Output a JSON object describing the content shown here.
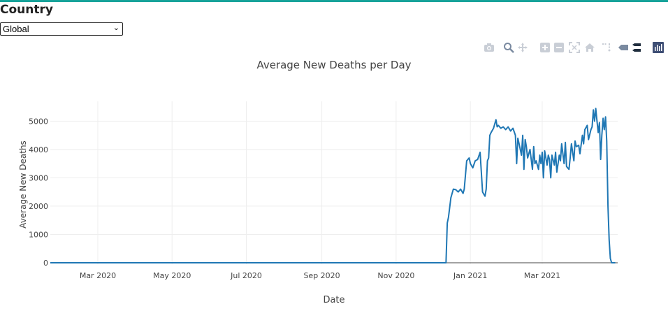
{
  "header": {
    "title": "Country"
  },
  "country_select": {
    "selected": "Global"
  },
  "modebar": {
    "icons": [
      "camera-icon",
      "zoom-icon",
      "pan-icon",
      "zoom-in-icon",
      "zoom-out-icon",
      "autoscale-icon",
      "reset-axes-icon",
      "spike-lines-icon",
      "hover-closest-icon",
      "hover-compare-icon",
      "plotly-logo-icon"
    ]
  },
  "chart_data": {
    "type": "line",
    "title": "Average New Deaths per Day",
    "xlabel": "Date",
    "ylabel": "Average New Deaths",
    "x_range": [
      "2020-01-22",
      "2021-05-02"
    ],
    "ylim": [
      -50,
      5700
    ],
    "x_ticks": [
      {
        "date": "2020-03-01",
        "label": "Mar 2020"
      },
      {
        "date": "2020-05-01",
        "label": "May 2020"
      },
      {
        "date": "2020-07-01",
        "label": "Jul 2020"
      },
      {
        "date": "2020-09-01",
        "label": "Sep 2020"
      },
      {
        "date": "2020-11-01",
        "label": "Nov 2020"
      },
      {
        "date": "2021-01-01",
        "label": "Jan 2021"
      },
      {
        "date": "2021-03-01",
        "label": "Mar 2021"
      }
    ],
    "y_ticks": [
      0,
      1000,
      2000,
      3000,
      4000,
      5000
    ],
    "grid": true,
    "series": [
      {
        "color": "#1f77b4",
        "x": [
          "2020-01-22",
          "2020-12-12",
          "2020-12-13",
          "2020-12-14",
          "2020-12-16",
          "2020-12-18",
          "2020-12-20",
          "2020-12-22",
          "2020-12-24",
          "2020-12-26",
          "2020-12-27",
          "2020-12-29",
          "2020-12-31",
          "2021-01-01",
          "2021-01-03",
          "2021-01-05",
          "2021-01-07",
          "2021-01-09",
          "2021-01-11",
          "2021-01-13",
          "2021-01-14",
          "2021-01-15",
          "2021-01-16",
          "2021-01-17",
          "2021-01-18",
          "2021-01-20",
          "2021-01-22",
          "2021-01-23",
          "2021-01-24",
          "2021-01-26",
          "2021-01-28",
          "2021-01-30",
          "2021-02-01",
          "2021-02-03",
          "2021-02-05",
          "2021-02-07",
          "2021-02-08",
          "2021-02-09",
          "2021-02-10",
          "2021-02-12",
          "2021-02-13",
          "2021-02-14",
          "2021-02-15",
          "2021-02-16",
          "2021-02-17",
          "2021-02-19",
          "2021-02-21",
          "2021-02-22",
          "2021-02-23",
          "2021-02-24",
          "2021-02-26",
          "2021-02-27",
          "2021-02-28",
          "2021-03-01",
          "2021-03-02",
          "2021-03-03",
          "2021-03-05",
          "2021-03-06",
          "2021-03-07",
          "2021-03-08",
          "2021-03-09",
          "2021-03-11",
          "2021-03-12",
          "2021-03-13",
          "2021-03-15",
          "2021-03-16",
          "2021-03-17",
          "2021-03-19",
          "2021-03-20",
          "2021-03-21",
          "2021-03-23",
          "2021-03-24",
          "2021-03-25",
          "2021-03-27",
          "2021-03-28",
          "2021-03-29",
          "2021-03-31",
          "2021-04-01",
          "2021-04-03",
          "2021-04-04",
          "2021-04-05",
          "2021-04-07",
          "2021-04-08",
          "2021-04-10",
          "2021-04-11",
          "2021-04-12",
          "2021-04-13",
          "2021-04-14",
          "2021-04-15",
          "2021-04-16",
          "2021-04-17",
          "2021-04-18",
          "2021-04-19",
          "2021-04-20",
          "2021-04-21",
          "2021-04-22",
          "2021-04-23",
          "2021-04-24",
          "2021-04-25",
          "2021-04-26",
          "2021-04-27",
          "2021-04-28",
          "2021-04-29",
          "2021-04-30"
        ],
        "y": [
          0,
          0,
          1400,
          1600,
          2300,
          2600,
          2580,
          2500,
          2600,
          2450,
          2600,
          3600,
          3700,
          3500,
          3350,
          3600,
          3650,
          3900,
          2500,
          2350,
          2600,
          3600,
          3700,
          4500,
          4600,
          4750,
          5050,
          4800,
          4850,
          4750,
          4800,
          4700,
          4800,
          4650,
          4750,
          4500,
          3500,
          4400,
          4200,
          3800,
          4500,
          3300,
          4350,
          4100,
          3700,
          4000,
          3300,
          4100,
          3500,
          3600,
          3300,
          3800,
          3500,
          3900,
          3000,
          3950,
          3450,
          3800,
          3650,
          3000,
          3800,
          3450,
          3900,
          3200,
          3800,
          3600,
          4200,
          3500,
          4250,
          3400,
          3300,
          3700,
          4200,
          3600,
          4300,
          4100,
          4150,
          3850,
          4500,
          4200,
          4700,
          4850,
          4350,
          4700,
          4800,
          5400,
          5000,
          5450,
          5000,
          4600,
          4950,
          3650,
          4500,
          5100,
          4700,
          5150,
          4300,
          2000,
          800,
          150,
          0,
          0,
          0,
          0
        ]
      }
    ]
  }
}
